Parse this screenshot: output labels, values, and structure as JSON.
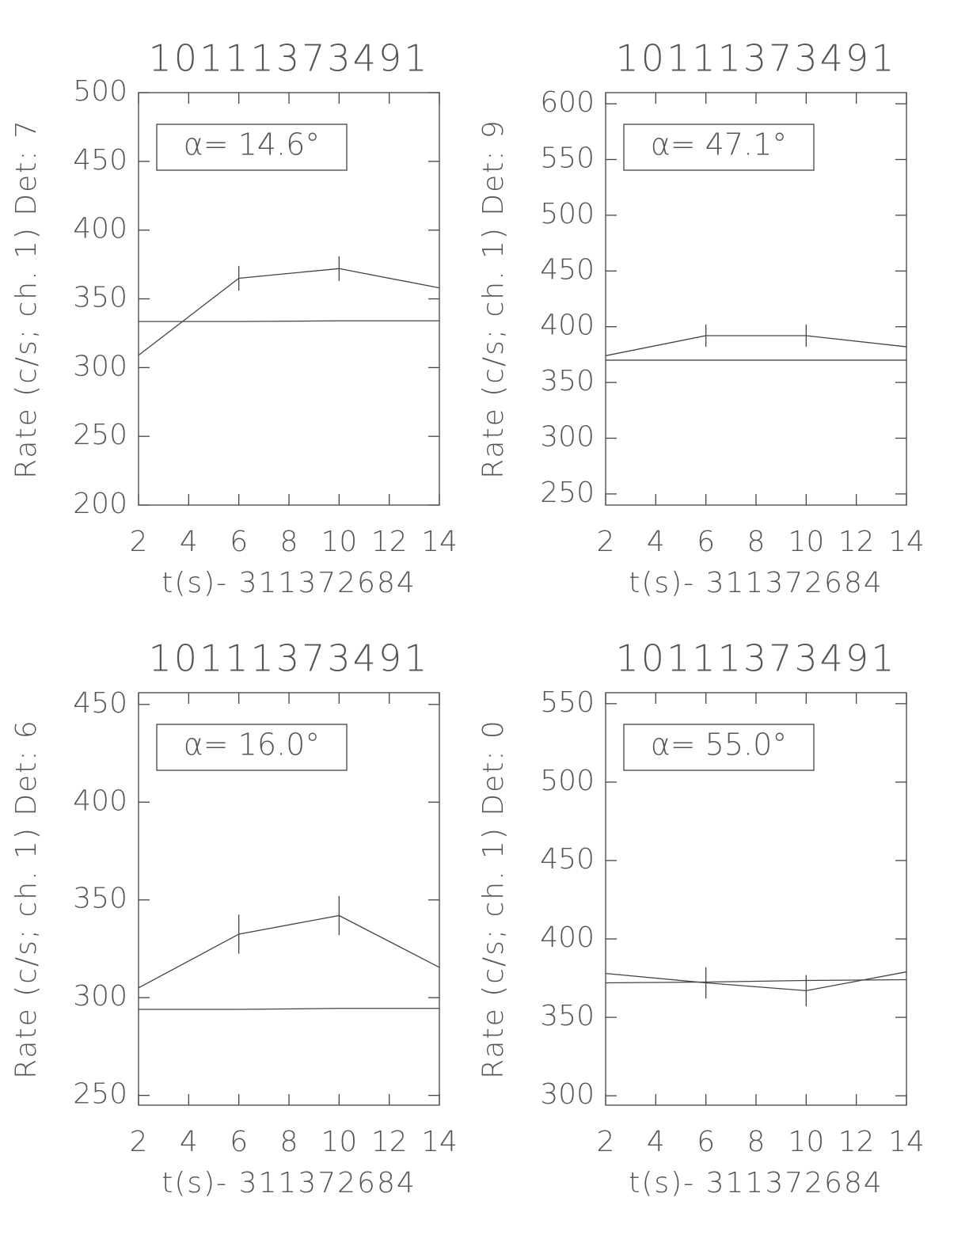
{
  "chart_data": [
    {
      "type": "line",
      "title": "10111373491",
      "ylabel": "Rate (c/s; ch. 1) Det: 7",
      "xlabel": "t(s)- 311372684",
      "annotation": "α= 14.6°",
      "x": [
        2,
        6,
        10,
        14
      ],
      "xlim": [
        2,
        14
      ],
      "xticks": [
        2,
        4,
        6,
        8,
        10,
        12,
        14
      ],
      "ylim": [
        200,
        500
      ],
      "yticks": [
        200,
        250,
        300,
        350,
        400,
        450,
        500
      ],
      "series": [
        {
          "color": "#444444",
          "values": [
            309,
            365,
            372,
            358
          ],
          "errors": [
            null,
            9,
            9,
            null
          ]
        },
        {
          "color": "#444444",
          "values": [
            333.5,
            333.5,
            334,
            334
          ]
        }
      ]
    },
    {
      "type": "line",
      "title": "10111373491",
      "ylabel": "Rate (c/s; ch. 1) Det: 9",
      "xlabel": "t(s)- 311372684",
      "annotation": "α= 47.1°",
      "x": [
        2,
        6,
        10,
        14
      ],
      "xlim": [
        2,
        14
      ],
      "xticks": [
        2,
        4,
        6,
        8,
        10,
        12,
        14
      ],
      "ylim": [
        240,
        610
      ],
      "yticks": [
        250,
        300,
        350,
        400,
        450,
        500,
        550,
        600
      ],
      "series": [
        {
          "color": "#444444",
          "values": [
            374,
            392,
            392,
            382
          ],
          "errors": [
            null,
            10,
            10,
            null
          ]
        },
        {
          "color": "#444444",
          "values": [
            370,
            370,
            370,
            370
          ]
        }
      ]
    },
    {
      "type": "line",
      "title": "10111373491",
      "ylabel": "Rate (c/s; ch. 1) Det: 6",
      "xlabel": "t(s)- 311372684",
      "annotation": "α= 16.0°",
      "x": [
        2,
        6,
        10,
        14
      ],
      "xlim": [
        2,
        14
      ],
      "xticks": [
        2,
        4,
        6,
        8,
        10,
        12,
        14
      ],
      "ylim": [
        245,
        456
      ],
      "yticks": [
        250,
        300,
        350,
        400,
        450
      ],
      "series": [
        {
          "color": "#444444",
          "values": [
            305,
            332.5,
            342,
            315.5
          ],
          "errors": [
            null,
            10,
            10,
            null
          ]
        },
        {
          "color": "#444444",
          "values": [
            294,
            294,
            294.5,
            294.5
          ]
        }
      ]
    },
    {
      "type": "line",
      "title": "10111373491",
      "ylabel": "Rate (c/s; ch. 1) Det: 0",
      "xlabel": "t(s)- 311372684",
      "annotation": "α= 55.0°",
      "x": [
        2,
        6,
        10,
        14
      ],
      "xlim": [
        2,
        14
      ],
      "xticks": [
        2,
        4,
        6,
        8,
        10,
        12,
        14
      ],
      "ylim": [
        294,
        557
      ],
      "yticks": [
        300,
        350,
        400,
        450,
        500,
        550
      ],
      "series": [
        {
          "color": "#444444",
          "values": [
            378,
            372,
            367,
            379
          ],
          "errors": [
            null,
            10,
            10,
            null
          ]
        },
        {
          "color": "#444444",
          "values": [
            372,
            372.5,
            373.5,
            374
          ]
        }
      ]
    }
  ]
}
